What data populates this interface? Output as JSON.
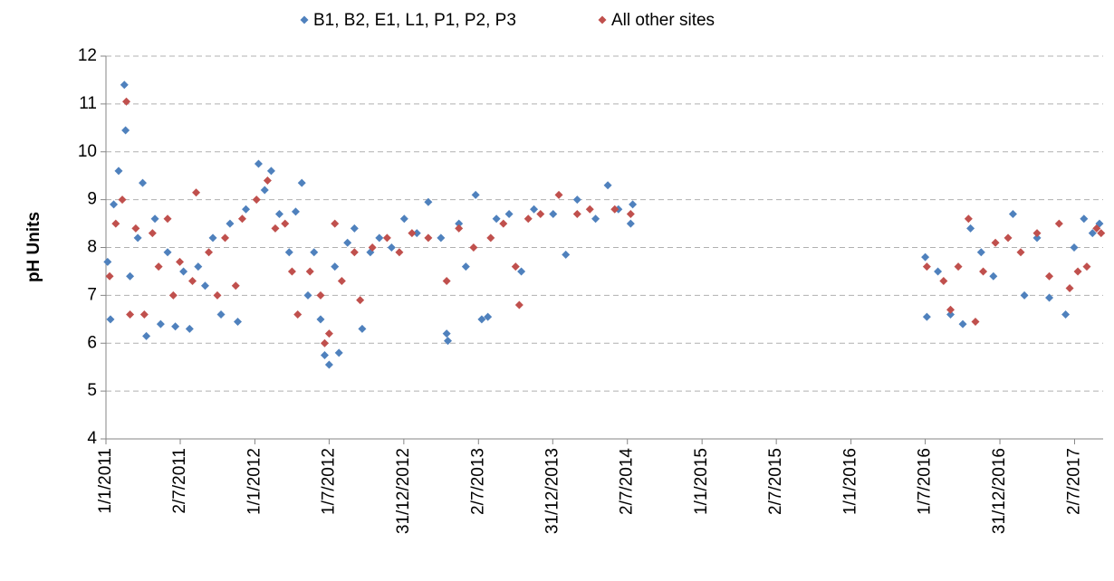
{
  "chart_data": {
    "type": "scatter",
    "y_label": "pH Units",
    "legend": "top",
    "grid": true,
    "xlim": [
      "2011-01-01",
      "2017-09-10"
    ],
    "xticks": [
      {
        "value": "2011-01-01",
        "label": "1/1/2011"
      },
      {
        "value": "2011-07-02",
        "label": "2/7/2011"
      },
      {
        "value": "2012-01-01",
        "label": "1/1/2012"
      },
      {
        "value": "2012-07-01",
        "label": "1/7/2012"
      },
      {
        "value": "2012-12-31",
        "label": "31/12/2012"
      },
      {
        "value": "2013-07-02",
        "label": "2/7/2013"
      },
      {
        "value": "2013-12-31",
        "label": "31/12/2013"
      },
      {
        "value": "2014-07-02",
        "label": "2/7/2014"
      },
      {
        "value": "2015-01-01",
        "label": "1/1/2015"
      },
      {
        "value": "2015-07-02",
        "label": "2/7/2015"
      },
      {
        "value": "2016-01-01",
        "label": "1/1/2016"
      },
      {
        "value": "2016-07-01",
        "label": "1/7/2016"
      },
      {
        "value": "2016-12-31",
        "label": "31/12/2016"
      },
      {
        "value": "2017-07-02",
        "label": "2/7/2017"
      }
    ],
    "ylim": [
      4,
      12
    ],
    "yticks": [
      4,
      5,
      6,
      7,
      8,
      9,
      10,
      11,
      12
    ],
    "series": [
      {
        "name": "B1, B2, E1, L1, P1, P2, P3",
        "color": "#4f81bd",
        "x": [
          "2011-01-05",
          "2011-01-12",
          "2011-01-20",
          "2011-02-01",
          "2011-02-15",
          "2011-02-18",
          "2011-03-01",
          "2011-03-20",
          "2011-04-01",
          "2011-04-10",
          "2011-05-01",
          "2011-05-15",
          "2011-06-01",
          "2011-06-20",
          "2011-07-10",
          "2011-07-25",
          "2011-08-15",
          "2011-09-01",
          "2011-09-20",
          "2011-10-10",
          "2011-11-01",
          "2011-11-20",
          "2011-12-10",
          "2012-01-10",
          "2012-01-25",
          "2012-02-10",
          "2012-03-01",
          "2012-03-25",
          "2012-04-10",
          "2012-04-25",
          "2012-05-10",
          "2012-05-25",
          "2012-06-10",
          "2012-06-20",
          "2012-07-01",
          "2012-07-15",
          "2012-07-25",
          "2012-08-15",
          "2012-09-01",
          "2012-09-20",
          "2012-10-10",
          "2012-11-01",
          "2012-12-01",
          "2013-01-01",
          "2013-02-01",
          "2013-03-01",
          "2013-04-01",
          "2013-04-15",
          "2013-04-18",
          "2013-05-15",
          "2013-06-01",
          "2013-06-25",
          "2013-07-10",
          "2013-07-25",
          "2013-08-15",
          "2013-09-15",
          "2013-10-15",
          "2013-11-15",
          "2014-01-01",
          "2014-02-01",
          "2014-03-01",
          "2014-04-15",
          "2014-05-15",
          "2014-06-10",
          "2014-07-10",
          "2014-07-15",
          "2016-07-01",
          "2016-07-05",
          "2016-08-01",
          "2016-09-01",
          "2016-10-01",
          "2016-10-20",
          "2016-11-15",
          "2016-12-15",
          "2017-02-01",
          "2017-03-01",
          "2017-04-01",
          "2017-05-01",
          "2017-06-10",
          "2017-07-01",
          "2017-07-25",
          "2017-08-15",
          "2017-09-01"
        ],
        "values": [
          7.7,
          6.5,
          8.9,
          9.6,
          11.4,
          10.45,
          7.4,
          8.2,
          9.35,
          6.15,
          8.6,
          6.4,
          7.9,
          6.35,
          7.5,
          6.3,
          7.6,
          7.2,
          8.2,
          6.6,
          8.5,
          6.45,
          8.8,
          9.75,
          9.2,
          9.6,
          8.7,
          7.9,
          8.75,
          9.35,
          7.0,
          7.9,
          6.5,
          5.75,
          5.55,
          7.6,
          5.8,
          8.1,
          8.4,
          6.3,
          7.9,
          8.2,
          8.0,
          8.6,
          8.3,
          8.95,
          8.2,
          6.2,
          6.05,
          8.5,
          7.6,
          9.1,
          6.5,
          6.55,
          8.6,
          8.7,
          7.5,
          8.8,
          8.7,
          7.85,
          9.0,
          8.6,
          9.3,
          8.8,
          8.5,
          8.9,
          7.8,
          6.55,
          7.5,
          6.6,
          6.4,
          8.4,
          7.9,
          7.4,
          8.7,
          7.0,
          8.2,
          6.95,
          6.6,
          8.0,
          8.6,
          8.3,
          8.5
        ]
      },
      {
        "name": "All other sites",
        "color": "#c0504d",
        "x": [
          "2011-01-10",
          "2011-01-25",
          "2011-02-10",
          "2011-02-20",
          "2011-03-01",
          "2011-03-15",
          "2011-04-05",
          "2011-04-25",
          "2011-05-10",
          "2011-06-01",
          "2011-06-15",
          "2011-07-01",
          "2011-08-01",
          "2011-08-10",
          "2011-09-10",
          "2011-10-01",
          "2011-10-20",
          "2011-11-15",
          "2011-12-01",
          "2012-01-05",
          "2012-02-01",
          "2012-02-20",
          "2012-03-15",
          "2012-04-01",
          "2012-04-15",
          "2012-05-15",
          "2012-06-10",
          "2012-06-20",
          "2012-07-01",
          "2012-07-15",
          "2012-08-01",
          "2012-09-01",
          "2012-09-15",
          "2012-10-15",
          "2012-11-20",
          "2012-12-20",
          "2013-01-20",
          "2013-03-01",
          "2013-04-15",
          "2013-05-15",
          "2013-06-20",
          "2013-08-01",
          "2013-09-01",
          "2013-10-01",
          "2013-10-10",
          "2013-11-01",
          "2013-12-01",
          "2014-01-15",
          "2014-03-01",
          "2014-04-01",
          "2014-06-01",
          "2014-07-10",
          "2016-07-05",
          "2016-08-15",
          "2016-09-01",
          "2016-09-20",
          "2016-10-15",
          "2016-11-01",
          "2016-11-20",
          "2016-12-20",
          "2017-01-20",
          "2017-02-20",
          "2017-04-01",
          "2017-05-01",
          "2017-05-25",
          "2017-06-20",
          "2017-07-10",
          "2017-08-01",
          "2017-08-25",
          "2017-09-05"
        ],
        "values": [
          7.4,
          8.5,
          9.0,
          11.05,
          6.6,
          8.4,
          6.6,
          8.3,
          7.6,
          8.6,
          7.0,
          7.7,
          7.3,
          9.15,
          7.9,
          7.0,
          8.2,
          7.2,
          8.6,
          9.0,
          9.4,
          8.4,
          8.5,
          7.5,
          6.6,
          7.5,
          7.0,
          6.0,
          6.2,
          8.5,
          7.3,
          7.9,
          6.9,
          8.0,
          8.2,
          7.9,
          8.3,
          8.2,
          7.3,
          8.4,
          8.0,
          8.2,
          8.5,
          7.6,
          6.8,
          8.6,
          8.7,
          9.1,
          8.7,
          8.8,
          8.8,
          8.7,
          7.6,
          7.3,
          6.7,
          7.6,
          8.6,
          6.45,
          7.5,
          8.1,
          8.2,
          7.9,
          8.3,
          7.4,
          8.5,
          7.15,
          7.5,
          7.6,
          8.4,
          8.3
        ]
      }
    ]
  }
}
